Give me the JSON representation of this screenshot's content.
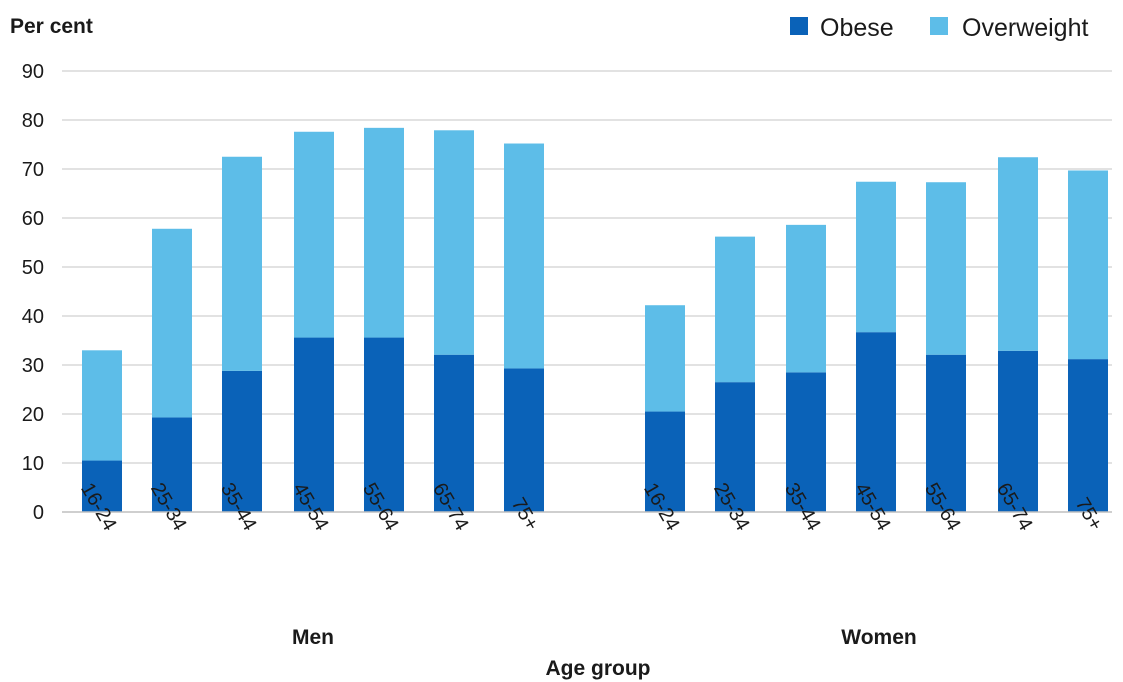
{
  "chart_data": {
    "type": "bar",
    "stacked": true,
    "ylabel": "Per cent",
    "xlabel": "Age group",
    "ylim": [
      0,
      90
    ],
    "yticks": [
      0,
      10,
      20,
      30,
      40,
      50,
      60,
      70,
      80,
      90
    ],
    "grid": true,
    "legend_position": "top-right",
    "colors": {
      "Obese": "#0a62b8",
      "Overweight": "#5dbde8",
      "grid": "#d9d9d9"
    },
    "groups": [
      {
        "label": "Men",
        "categories": [
          "16-24",
          "25-34",
          "35-44",
          "45-54",
          "55-64",
          "65-74",
          "75+"
        ],
        "series": [
          {
            "name": "Obese",
            "values": [
              10.5,
              19.3,
              28.8,
              35.6,
              35.6,
              32.1,
              29.3
            ]
          },
          {
            "name": "Overweight",
            "values": [
              22.5,
              38.5,
              43.7,
              42.0,
              42.8,
              45.8,
              45.9
            ]
          }
        ]
      },
      {
        "label": "Women",
        "categories": [
          "16-24",
          "25-34",
          "35-44",
          "45-54",
          "55-64",
          "65-74",
          "75+"
        ],
        "series": [
          {
            "name": "Obese",
            "values": [
              20.5,
              26.5,
              28.5,
              36.7,
              32.1,
              32.9,
              31.2
            ]
          },
          {
            "name": "Overweight",
            "values": [
              21.7,
              29.7,
              30.1,
              30.7,
              35.2,
              39.5,
              38.5
            ]
          }
        ]
      }
    ]
  }
}
